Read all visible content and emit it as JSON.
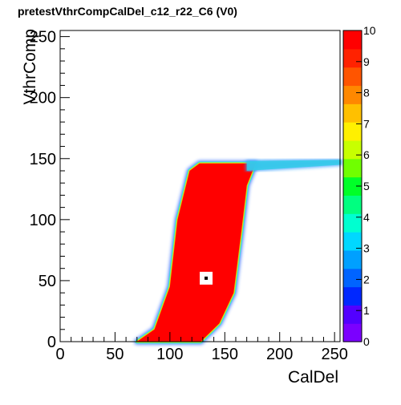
{
  "title": "pretestVthrCompCalDel_c12_r22_C6 (V0)",
  "chart_data": {
    "type": "heatmap",
    "title": "pretestVthrCompCalDel_c12_r22_C6 (V0)",
    "xlabel": "CalDel",
    "ylabel": "VthrComp",
    "xlim": [
      0,
      255
    ],
    "ylim": [
      0,
      255
    ],
    "zlim": [
      0,
      10
    ],
    "x_ticks": [
      "0",
      "50",
      "100",
      "150",
      "200",
      "250"
    ],
    "y_ticks": [
      "0",
      "50",
      "100",
      "150",
      "200",
      "250"
    ],
    "z_ticks": [
      "0",
      "1",
      "2",
      "3",
      "4",
      "5",
      "6",
      "7",
      "8",
      "9",
      "10"
    ],
    "regions": [
      {
        "name": "saturated-band",
        "value": 10,
        "polygon": [
          [
            70,
            0
          ],
          [
            86,
            10
          ],
          [
            100,
            45
          ],
          [
            107,
            100
          ],
          [
            118,
            140
          ],
          [
            127,
            146
          ],
          [
            178,
            146
          ],
          [
            170,
            128
          ],
          [
            165,
            90
          ],
          [
            158,
            40
          ],
          [
            145,
            15
          ],
          [
            128,
            0
          ]
        ]
      },
      {
        "name": "plateau-tail",
        "value": 3,
        "polygon": [
          [
            170,
            140
          ],
          [
            256,
            145
          ],
          [
            256,
            149
          ],
          [
            170,
            148
          ]
        ]
      }
    ],
    "hole": {
      "x": 133,
      "y": 52,
      "value": 0
    },
    "colormap": [
      "#7b00ff",
      "#5200ff",
      "#0028ff",
      "#0064ff",
      "#00a0ff",
      "#00d8ff",
      "#00ffd0",
      "#00ff80",
      "#00ff28",
      "#70ff00",
      "#c8ff00",
      "#fff000",
      "#ffc000",
      "#ff8800",
      "#ff5500",
      "#ff2200",
      "#ff0000"
    ]
  }
}
